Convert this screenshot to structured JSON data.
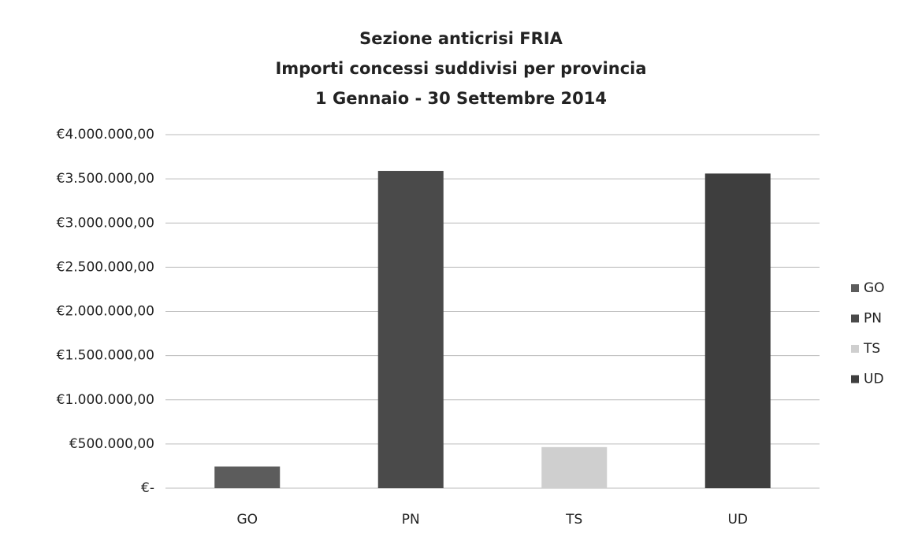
{
  "chart_data": {
    "type": "bar",
    "title": [
      "Sezione anticrisi FRIA",
      "Importi concessi suddivisi per provincia",
      "1 Gennaio - 30 Settembre 2014"
    ],
    "categories": [
      "GO",
      "PN",
      "TS",
      "UD"
    ],
    "values": [
      245000,
      3590000,
      465000,
      3560000
    ],
    "colors": [
      "#5c5c5c",
      "#4a4a4a",
      "#cfcfcf",
      "#3e3e3e"
    ],
    "ylim": [
      0,
      4000000
    ],
    "yticks": [
      {
        "value": 0,
        "label": "€-"
      },
      {
        "value": 500000,
        "label": "€500.000,00"
      },
      {
        "value": 1000000,
        "label": "€1.000.000,00"
      },
      {
        "value": 1500000,
        "label": "€1.500.000,00"
      },
      {
        "value": 2000000,
        "label": "€2.000.000,00"
      },
      {
        "value": 2500000,
        "label": "€2.500.000,00"
      },
      {
        "value": 3000000,
        "label": "€3.000.000,00"
      },
      {
        "value": 3500000,
        "label": "€3.500.000,00"
      },
      {
        "value": 4000000,
        "label": "€4.000.000,00"
      }
    ],
    "grid": true,
    "legend": "right"
  }
}
